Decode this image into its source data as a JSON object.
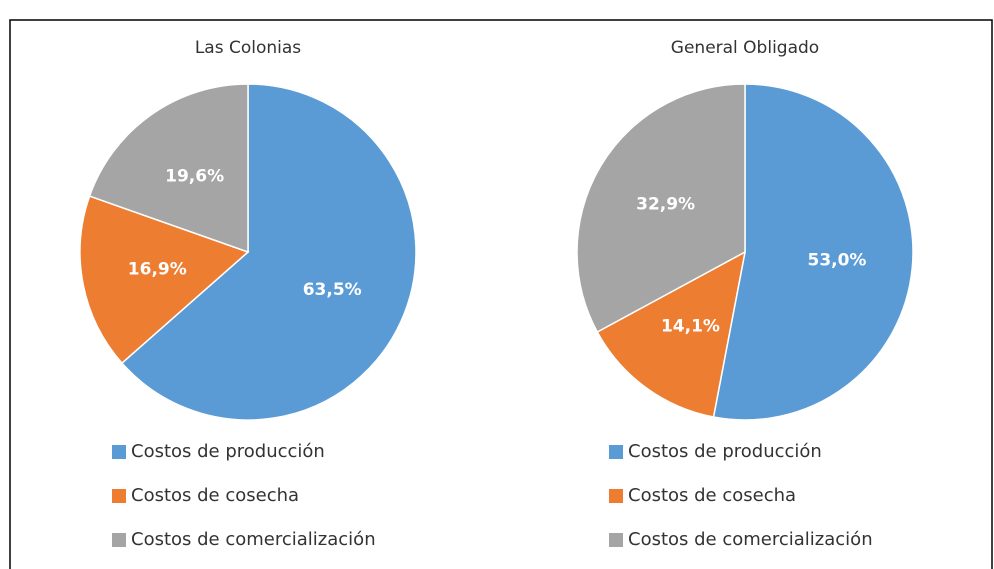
{
  "chart_data": [
    {
      "type": "pie",
      "title": "Las Colonias",
      "categories": [
        "Costos de producción",
        "Costos de cosecha",
        "Costos de comercialización"
      ],
      "values": [
        63.5,
        16.9,
        19.6
      ],
      "value_labels": [
        "63,5%",
        "16,9%",
        "19,6%"
      ],
      "colors": [
        "#5b9bd5",
        "#ed7d31",
        "#a5a5a5"
      ]
    },
    {
      "type": "pie",
      "title": "General Obligado",
      "categories": [
        "Costos de producción",
        "Costos de cosecha",
        "Costos de comercialización"
      ],
      "values": [
        53.0,
        14.1,
        32.9
      ],
      "value_labels": [
        "53,0%",
        "14,1%",
        "32,9%"
      ],
      "colors": [
        "#5b9bd5",
        "#ed7d31",
        "#a5a5a5"
      ]
    }
  ]
}
